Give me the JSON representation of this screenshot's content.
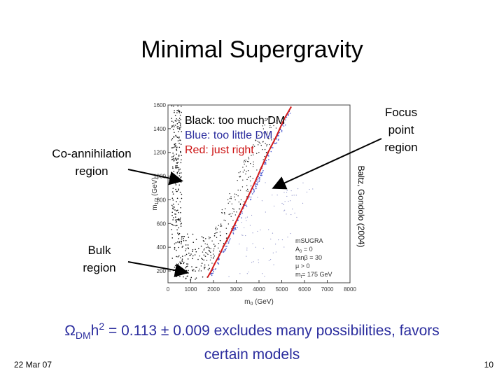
{
  "slide": {
    "title": "Minimal Supergravity",
    "labels": {
      "coannihilation_line1": "Co-annihilation",
      "coannihilation_line2": "region",
      "focus_line1": "Focus",
      "focus_line2": "point",
      "focus_line3": "region",
      "bulk_line1": "Bulk",
      "bulk_line2": "region"
    },
    "legend": {
      "black": "Black: too much DM",
      "blue": "Blue: too little DM",
      "red": "Red: just right"
    },
    "credit": "Baltz, Gondolo (2004)",
    "caption": {
      "omega": "Ω",
      "dm": "DM",
      "h": "h",
      "sq": "2",
      "rest_line1": " = 0.113 ± 0.009 excludes many possibilities, favors",
      "line2": "certain models"
    },
    "footer": {
      "date": "22 Mar 07",
      "page": "10"
    }
  },
  "colors": {
    "caption": "#2b2d9e",
    "legend_blue": "#2b2d9e",
    "legend_red": "#cc1111",
    "band_red": "#d41a1a",
    "band_blue": "#4a5bd0"
  },
  "chart_data": {
    "type": "scatter",
    "xlabel": "m",
    "xlabel_sub": "0",
    "xlabel_unit": "(GeV)",
    "ylabel": "m",
    "ylabel_sub": "1/2",
    "ylabel_unit": "(GeV)",
    "xlim": [
      0,
      8000
    ],
    "ylim": [
      100,
      1600
    ],
    "x_ticks": [
      0,
      1000,
      2000,
      3000,
      4000,
      5000,
      6000,
      7000,
      8000
    ],
    "y_ticks": [
      200,
      400,
      600,
      800,
      1000,
      1200,
      1400,
      1600
    ],
    "annotation_lines": [
      "mSUGRA",
      "A",
      "tanβ = 30",
      "μ > 0",
      "m",
      "= 175 GeV"
    ],
    "annotation_parts": {
      "a_sub": "0",
      "a_rest": " = 0",
      "mt_sub": "t"
    },
    "series": [
      {
        "name": "Red: just right",
        "points": [
          [
            1750,
            150
          ],
          [
            1900,
            200
          ],
          [
            2050,
            260
          ],
          [
            2250,
            330
          ],
          [
            2450,
            410
          ],
          [
            2700,
            500
          ],
          [
            2950,
            600
          ],
          [
            3200,
            700
          ],
          [
            3500,
            820
          ],
          [
            3800,
            940
          ],
          [
            4100,
            1070
          ],
          [
            4400,
            1200
          ],
          [
            4750,
            1330
          ],
          [
            5100,
            1480
          ],
          [
            5400,
            1580
          ]
        ]
      },
      {
        "name": "Black: too much DM",
        "regions": [
          "co-annihilation strip (m0 ≈ 100–500 GeV)",
          "bulk region (low m0, low m1/2)",
          "scattered points left of focus point band"
        ]
      }
    ]
  }
}
